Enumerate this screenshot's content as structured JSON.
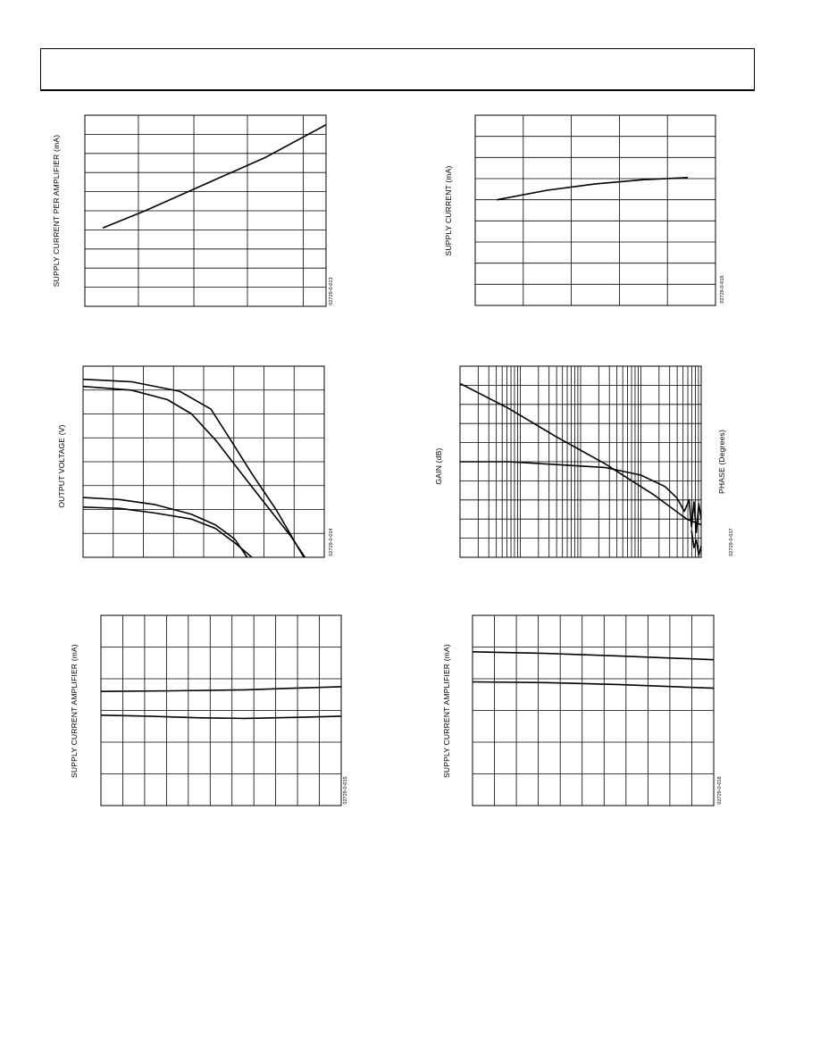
{
  "header": {
    "title": ""
  },
  "chart_data": [
    {
      "id": "c1",
      "type": "line",
      "ylabel": "SUPPLY CURRENT PER AMPLIFIER (mA)",
      "figure_id": "02729-0-013",
      "xlim": [
        0,
        1
      ],
      "ylim": [
        0,
        10
      ],
      "x_divisions": [
        0.222,
        0.452,
        0.674,
        0.906
      ],
      "y_divisions": 10,
      "series": [
        {
          "values": [
            [
              0.074,
              4.1
            ],
            [
              0.25,
              5.0
            ],
            [
              0.5,
              6.4
            ],
            [
              0.75,
              7.8
            ],
            [
              1.0,
              9.5
            ]
          ]
        }
      ]
    },
    {
      "id": "c2",
      "type": "line",
      "ylabel": "SUPPLY CURRENT (mA)",
      "figure_id": "02729-0-016",
      "xlim": [
        0,
        1
      ],
      "ylim": [
        0,
        9
      ],
      "x_divisions": [
        0.2,
        0.4,
        0.6,
        0.8
      ],
      "y_divisions": 9,
      "series": [
        {
          "values": [
            [
              0.09,
              5.0
            ],
            [
              0.3,
              5.45
            ],
            [
              0.5,
              5.75
            ],
            [
              0.7,
              5.95
            ],
            [
              0.885,
              6.05
            ]
          ]
        }
      ]
    },
    {
      "id": "c3",
      "type": "line",
      "ylabel": "OUTPUT VOLTAGE (V)",
      "figure_id": "02729-0-014",
      "xlim": [
        0,
        1
      ],
      "ylim": [
        0,
        8
      ],
      "x_divisions": 8,
      "y_divisions": 8,
      "series": [
        {
          "values": [
            [
              0.0,
              7.45
            ],
            [
              0.2,
              7.35
            ],
            [
              0.4,
              6.95
            ],
            [
              0.53,
              6.2
            ],
            [
              0.6,
              5.1
            ],
            [
              0.7,
              3.5
            ],
            [
              0.8,
              2.0
            ],
            [
              0.915,
              0.0
            ]
          ]
        },
        {
          "values": [
            [
              0.0,
              7.15
            ],
            [
              0.2,
              7.0
            ],
            [
              0.35,
              6.6
            ],
            [
              0.45,
              6.0
            ],
            [
              0.55,
              4.9
            ],
            [
              0.65,
              3.6
            ],
            [
              0.77,
              2.05
            ],
            [
              0.86,
              0.9
            ],
            [
              0.92,
              0.0
            ]
          ]
        },
        {
          "values": [
            [
              0.0,
              2.5
            ],
            [
              0.15,
              2.42
            ],
            [
              0.3,
              2.2
            ],
            [
              0.45,
              1.8
            ],
            [
              0.55,
              1.35
            ],
            [
              0.63,
              0.75
            ],
            [
              0.68,
              0.0
            ]
          ]
        },
        {
          "values": [
            [
              0.0,
              2.1
            ],
            [
              0.15,
              2.05
            ],
            [
              0.3,
              1.85
            ],
            [
              0.45,
              1.6
            ],
            [
              0.55,
              1.2
            ],
            [
              0.63,
              0.6
            ],
            [
              0.7,
              0.0
            ]
          ]
        }
      ]
    },
    {
      "id": "c4",
      "type": "line",
      "ylabel": "GAIN (dB)",
      "y2label": "PHASE (Degrees)",
      "figure_id": "02729-0-017",
      "xscale": "log",
      "xlim": [
        0,
        1
      ],
      "ylim": [
        0,
        10
      ],
      "log_decades": 4,
      "y_divisions": 10,
      "series": [
        {
          "values": [
            [
              0.0,
              9.1
            ],
            [
              0.2,
              7.8
            ],
            [
              0.4,
              6.3
            ],
            [
              0.6,
              4.9
            ],
            [
              0.8,
              3.3
            ],
            [
              0.94,
              2.0
            ],
            [
              1.0,
              1.7
            ]
          ]
        },
        {
          "values": [
            [
              0.0,
              5.0
            ],
            [
              0.2,
              5.0
            ],
            [
              0.4,
              4.85
            ],
            [
              0.6,
              4.7
            ],
            [
              0.75,
              4.3
            ],
            [
              0.85,
              3.7
            ],
            [
              0.9,
              3.1
            ],
            [
              0.93,
              2.4
            ],
            [
              0.95,
              3.0
            ],
            [
              0.96,
              1.6
            ],
            [
              0.97,
              2.9
            ],
            [
              0.98,
              1.3
            ],
            [
              0.99,
              2.8
            ],
            [
              1.0,
              2.0
            ]
          ]
        },
        {
          "values": [
            [
              0.96,
              1.4
            ],
            [
              0.97,
              0.5
            ],
            [
              0.98,
              0.9
            ],
            [
              0.99,
              0.1
            ],
            [
              1.0,
              0.6
            ]
          ]
        }
      ]
    },
    {
      "id": "c5",
      "type": "line",
      "ylabel": "SUPPLY CURRENT AMPLIFIER (mA)",
      "figure_id": "02729-0-015",
      "xlim": [
        0,
        1
      ],
      "ylim": [
        0,
        6
      ],
      "x_divisions": 11,
      "y_divisions": 6,
      "series": [
        {
          "values": [
            [
              0.0,
              3.6
            ],
            [
              0.3,
              3.62
            ],
            [
              0.6,
              3.65
            ],
            [
              0.8,
              3.7
            ],
            [
              1.0,
              3.75
            ]
          ]
        },
        {
          "values": [
            [
              0.0,
              2.85
            ],
            [
              0.2,
              2.82
            ],
            [
              0.4,
              2.77
            ],
            [
              0.6,
              2.75
            ],
            [
              0.8,
              2.78
            ],
            [
              1.0,
              2.82
            ]
          ]
        }
      ]
    },
    {
      "id": "c6",
      "type": "line",
      "ylabel": "SUPPLY CURRENT AMPLIFIER (mA)",
      "figure_id": "02729-0-018",
      "xlim": [
        0,
        1
      ],
      "ylim": [
        0,
        6
      ],
      "x_divisions": 11,
      "y_divisions": 6,
      "series": [
        {
          "values": [
            [
              0.0,
              4.85
            ],
            [
              0.3,
              4.8
            ],
            [
              0.6,
              4.72
            ],
            [
              1.0,
              4.6
            ]
          ]
        },
        {
          "values": [
            [
              0.0,
              3.9
            ],
            [
              0.3,
              3.88
            ],
            [
              0.6,
              3.82
            ],
            [
              1.0,
              3.7
            ]
          ]
        }
      ]
    }
  ]
}
